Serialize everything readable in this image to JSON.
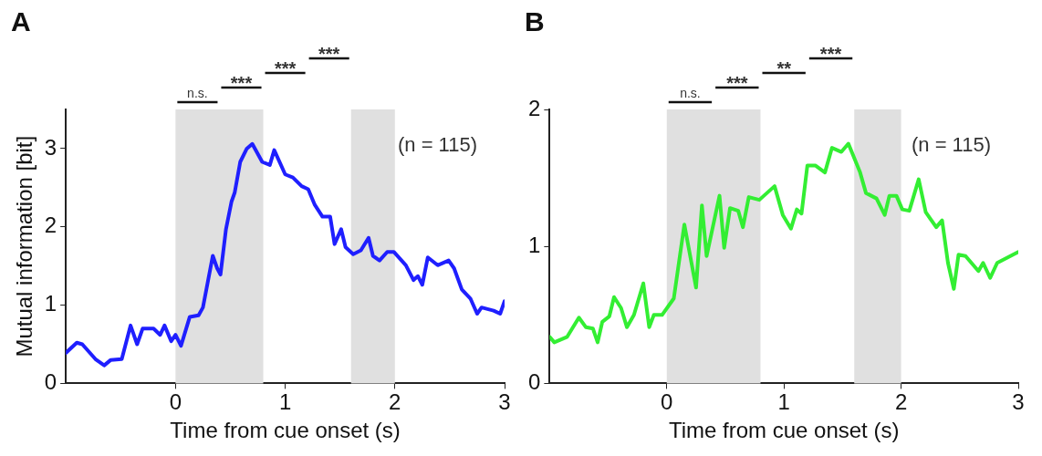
{
  "chart_data": [
    {
      "type": "line",
      "title": "A",
      "xlabel": "Time from cue onset (s)",
      "ylabel": "Mutual information [bit]",
      "xlim": [
        -1,
        3
      ],
      "xticks": [
        0,
        1,
        2,
        3
      ],
      "ylim": [
        0,
        3.5
      ],
      "yticks": [
        0,
        1,
        2,
        3
      ],
      "grid": false,
      "legend": false,
      "marker": "none",
      "line_style": "solid",
      "bands": [
        {
          "axis": "x",
          "from": 0,
          "to": 0.8,
          "color": "#e0e0e0"
        },
        {
          "axis": "x",
          "from": 1.6,
          "to": 2.0,
          "color": "#e0e0e0"
        }
      ],
      "annotations": [
        "n.s.",
        "***",
        "***",
        "***",
        "(n = 115)"
      ],
      "series": [
        {
          "color": "#1f1fff",
          "x": [
            -1.0,
            -0.9,
            -0.85,
            -0.73,
            -0.65,
            -0.59,
            -0.49,
            -0.41,
            -0.35,
            -0.3,
            -0.2,
            -0.14,
            -0.1,
            -0.04,
            0,
            0.05,
            0.13,
            0.21,
            0.25,
            0.34,
            0.38,
            0.41,
            0.46,
            0.51,
            0.54,
            0.59,
            0.65,
            0.7,
            0.79,
            0.86,
            0.9,
            1.0,
            1.07,
            1.15,
            1.21,
            1.27,
            1.34,
            1.41,
            1.45,
            1.51,
            1.55,
            1.62,
            1.69,
            1.76,
            1.8,
            1.86,
            1.93,
            1.99,
            2.1,
            2.17,
            2.21,
            2.25,
            2.3,
            2.39,
            2.49,
            2.54,
            2.61,
            2.69,
            2.75,
            2.79,
            2.9,
            2.96,
            3.0
          ],
          "values": [
            0.39,
            0.52,
            0.5,
            0.31,
            0.23,
            0.3,
            0.31,
            0.74,
            0.5,
            0.7,
            0.7,
            0.62,
            0.74,
            0.54,
            0.62,
            0.48,
            0.85,
            0.87,
            0.97,
            1.63,
            1.47,
            1.39,
            1.97,
            2.32,
            2.44,
            2.83,
            3.0,
            3.06,
            2.83,
            2.79,
            2.98,
            2.67,
            2.63,
            2.52,
            2.48,
            2.28,
            2.13,
            2.13,
            1.78,
            1.97,
            1.74,
            1.65,
            1.7,
            1.86,
            1.63,
            1.57,
            1.68,
            1.68,
            1.51,
            1.32,
            1.37,
            1.26,
            1.61,
            1.51,
            1.57,
            1.47,
            1.2,
            1.08,
            0.89,
            0.97,
            0.93,
            0.89,
            1.05
          ]
        }
      ]
    },
    {
      "type": "line",
      "title": "B",
      "xlabel": "Time from cue onset (s)",
      "xlim": [
        -1,
        3
      ],
      "xticks": [
        0,
        1,
        2,
        3
      ],
      "ylim": [
        0,
        2
      ],
      "yticks": [
        0,
        1,
        2
      ],
      "grid": false,
      "legend": false,
      "marker": "none",
      "line_style": "solid",
      "bands": [
        {
          "axis": "x",
          "from": 0,
          "to": 0.8,
          "color": "#e0e0e0"
        },
        {
          "axis": "x",
          "from": 1.6,
          "to": 2.0,
          "color": "#e0e0e0"
        }
      ],
      "annotations": [
        "n.s.",
        "***",
        "**",
        "***",
        "(n = 115)"
      ],
      "series": [
        {
          "color": "#33ee33",
          "x": [
            -1.0,
            -0.96,
            -0.85,
            -0.75,
            -0.69,
            -0.63,
            -0.59,
            -0.55,
            -0.49,
            -0.45,
            -0.39,
            -0.34,
            -0.28,
            -0.2,
            -0.15,
            -0.11,
            -0.04,
            0.06,
            0.15,
            0.25,
            0.3,
            0.34,
            0.45,
            0.49,
            0.54,
            0.61,
            0.65,
            0.7,
            0.79,
            0.92,
            0.99,
            1.06,
            1.11,
            1.15,
            1.2,
            1.27,
            1.35,
            1.41,
            1.49,
            1.55,
            1.65,
            1.7,
            1.79,
            1.86,
            1.9,
            1.96,
            2.01,
            2.07,
            2.15,
            2.21,
            2.3,
            2.35,
            2.4,
            2.45,
            2.49,
            2.55,
            2.66,
            2.7,
            2.76,
            2.82,
            3.0
          ],
          "values": [
            0.34,
            0.3,
            0.34,
            0.48,
            0.41,
            0.4,
            0.3,
            0.45,
            0.49,
            0.63,
            0.55,
            0.41,
            0.5,
            0.73,
            0.41,
            0.5,
            0.5,
            0.62,
            1.16,
            0.7,
            1.3,
            0.93,
            1.37,
            0.99,
            1.28,
            1.26,
            1.14,
            1.36,
            1.34,
            1.44,
            1.23,
            1.13,
            1.27,
            1.24,
            1.59,
            1.59,
            1.54,
            1.72,
            1.69,
            1.75,
            1.54,
            1.39,
            1.35,
            1.23,
            1.37,
            1.37,
            1.27,
            1.26,
            1.49,
            1.25,
            1.14,
            1.19,
            0.88,
            0.69,
            0.94,
            0.93,
            0.82,
            0.88,
            0.77,
            0.88,
            0.96
          ]
        }
      ]
    }
  ]
}
